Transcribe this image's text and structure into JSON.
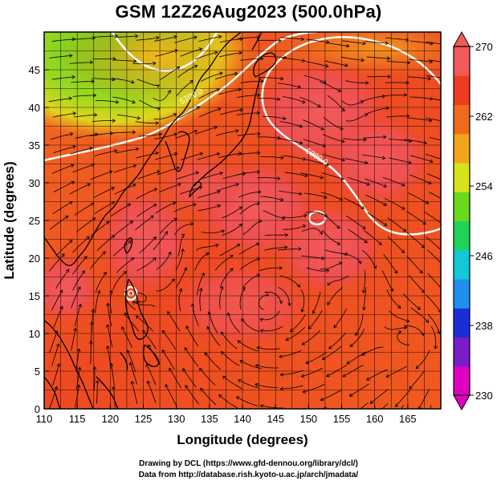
{
  "title": "GSM 12Z26Aug2023 (500.0hPa)",
  "x_axis": {
    "label": "Longitude (degrees)",
    "range": [
      110,
      170
    ],
    "ticks": [
      110,
      115,
      120,
      125,
      130,
      135,
      140,
      145,
      150,
      155,
      160,
      165
    ]
  },
  "y_axis": {
    "label": "Latitude (degrees)",
    "range": [
      0,
      50
    ],
    "ticks": [
      0,
      5,
      10,
      15,
      20,
      25,
      30,
      35,
      40,
      45
    ]
  },
  "colorbar": {
    "range": [
      230,
      270
    ],
    "labels": [
      270,
      262,
      254,
      246,
      238,
      230
    ],
    "colors": [
      "#e000c0",
      "#7a1cc8",
      "#1a2ed8",
      "#1f8ff0",
      "#10c8d8",
      "#1fd35a",
      "#6ad81c",
      "#d8e21a",
      "#f2a51a",
      "#f06a1c",
      "#ee3b22",
      "#f25a5a"
    ]
  },
  "contour_labels": [
    "5700.0",
    "5880.0"
  ],
  "credit_line1": "Drawing by DCL (https://www.gfd-dennou.org/library/dcl/)",
  "credit_line2": "Data from http://database.rish.kyoto-u.ac.jp/arch/jmadata/"
}
